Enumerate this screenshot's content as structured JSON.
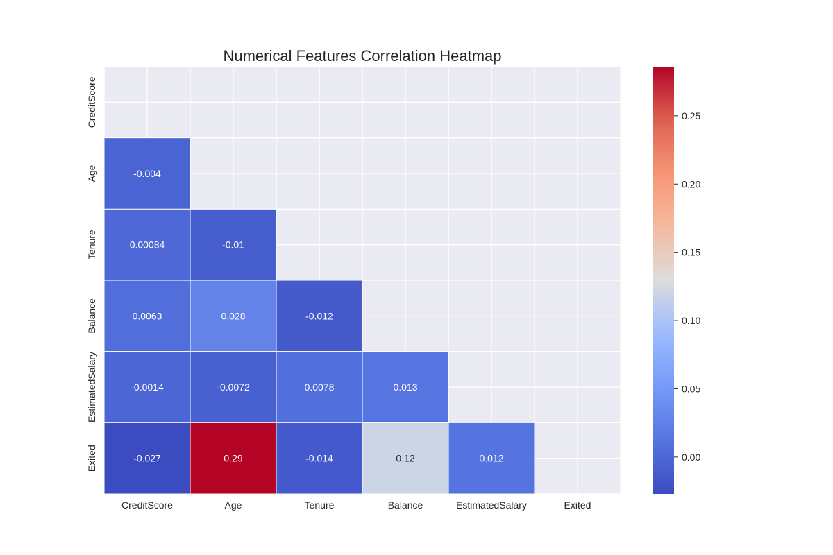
{
  "chart_data": {
    "type": "heatmap",
    "title": "Numerical Features Correlation Heatmap",
    "features": [
      "CreditScore",
      "Age",
      "Tenure",
      "Balance",
      "EstimatedSalary",
      "Exited"
    ],
    "mask": "upper-triangle-and-diagonal",
    "cells": [
      {
        "row": 1,
        "col": 0,
        "value": -0.004,
        "label": "-0.004"
      },
      {
        "row": 2,
        "col": 0,
        "value": 0.00084,
        "label": "0.00084"
      },
      {
        "row": 2,
        "col": 1,
        "value": -0.01,
        "label": "-0.01"
      },
      {
        "row": 3,
        "col": 0,
        "value": 0.0063,
        "label": "0.0063"
      },
      {
        "row": 3,
        "col": 1,
        "value": 0.028,
        "label": "0.028"
      },
      {
        "row": 3,
        "col": 2,
        "value": -0.012,
        "label": "-0.012"
      },
      {
        "row": 4,
        "col": 0,
        "value": -0.0014,
        "label": "-0.0014"
      },
      {
        "row": 4,
        "col": 1,
        "value": -0.0072,
        "label": "-0.0072"
      },
      {
        "row": 4,
        "col": 2,
        "value": 0.0078,
        "label": "0.0078"
      },
      {
        "row": 4,
        "col": 3,
        "value": 0.013,
        "label": "0.013"
      },
      {
        "row": 5,
        "col": 0,
        "value": -0.027,
        "label": "-0.027"
      },
      {
        "row": 5,
        "col": 1,
        "value": 0.29,
        "label": "0.29"
      },
      {
        "row": 5,
        "col": 2,
        "value": -0.014,
        "label": "-0.014"
      },
      {
        "row": 5,
        "col": 3,
        "value": 0.12,
        "label": "0.12"
      },
      {
        "row": 5,
        "col": 4,
        "value": 0.012,
        "label": "0.012"
      }
    ],
    "colormap": "coolwarm",
    "vmin": -0.027,
    "vmax": 0.286,
    "colorbar": {
      "ticks": [
        0.0,
        0.05,
        0.1,
        0.15,
        0.2,
        0.25
      ],
      "tick_labels": [
        "0.00",
        "0.05",
        "0.10",
        "0.15",
        "0.20",
        "0.25"
      ]
    },
    "grid": true,
    "colors": {
      "background": "#eaeaf2",
      "grid": "#ffffff",
      "text": "#262626"
    }
  }
}
